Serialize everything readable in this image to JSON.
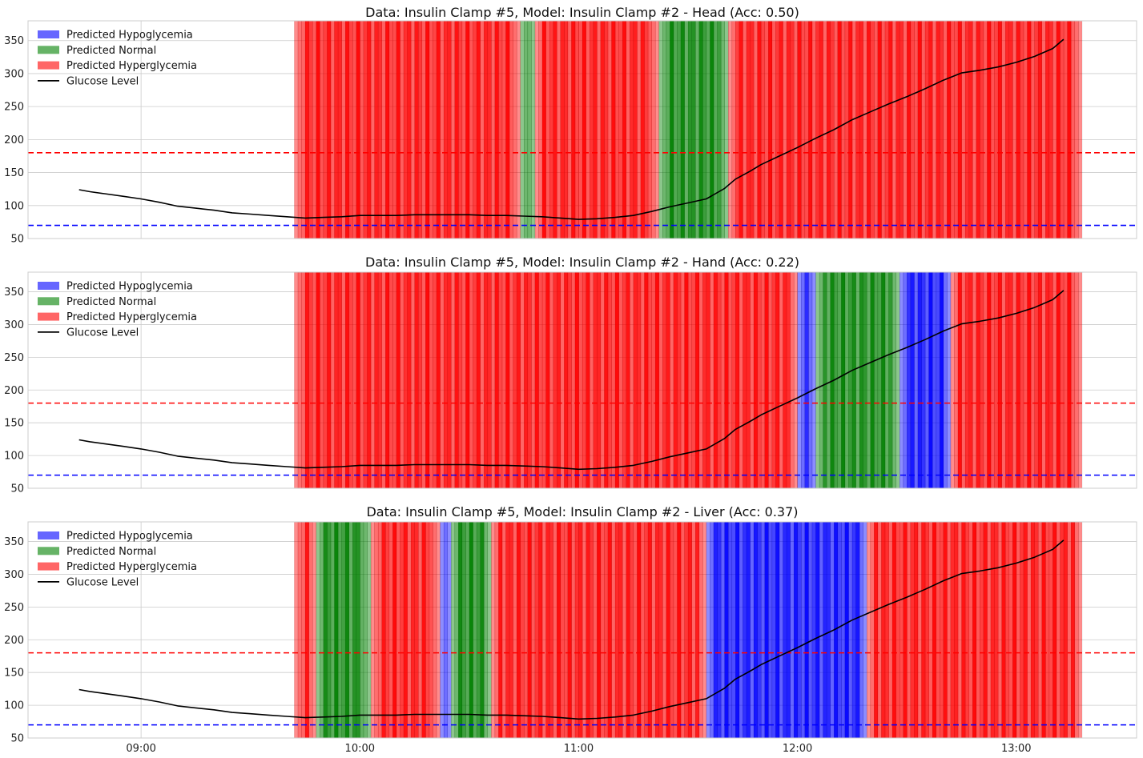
{
  "figure": {
    "colors": {
      "hypo": "#0000ff",
      "normal": "#008000",
      "hyper": "#ff0000",
      "glucose": "#000000",
      "grid": "#cccccc",
      "hyper_threshold": "#ff0000",
      "hypo_threshold": "#0000ff"
    }
  },
  "chart_data": [
    {
      "type": "line",
      "title": "Data: Insulin Clamp #5, Model: Insulin Clamp #2 - Head (Acc: 0.50)",
      "xlabel": "",
      "ylabel": "",
      "xlim": [
        "08:29",
        "13:33"
      ],
      "ylim": [
        50,
        380
      ],
      "yticks": [
        50,
        100,
        150,
        200,
        250,
        300,
        350
      ],
      "xticks": [
        "09:00",
        "10:00",
        "11:00",
        "12:00",
        "13:00"
      ],
      "show_xtick_labels": false,
      "grid": true,
      "legend": {
        "placement": "top-left",
        "entries": [
          {
            "label": "Predicted Hypoglycemia",
            "kind": "patch",
            "class": "hypo"
          },
          {
            "label": "Predicted Normal",
            "kind": "patch",
            "class": "normal"
          },
          {
            "label": "Predicted Hyperglycemia",
            "kind": "patch",
            "class": "hyper"
          },
          {
            "label": "Glucose Level",
            "kind": "line",
            "class": "glucose"
          }
        ]
      },
      "threshold_lines": [
        {
          "y": 180,
          "class": "hyper_threshold",
          "style": "dashed"
        },
        {
          "y": 70,
          "class": "hypo_threshold",
          "style": "dashed"
        }
      ],
      "prediction_spans": [
        {
          "start": "09:42",
          "end": "10:44",
          "class": "hyper"
        },
        {
          "start": "10:44",
          "end": "10:48",
          "class": "normal"
        },
        {
          "start": "10:48",
          "end": "11:22",
          "class": "hyper"
        },
        {
          "start": "11:22",
          "end": "11:41",
          "class": "normal"
        },
        {
          "start": "11:41",
          "end": "13:18",
          "class": "hyper"
        }
      ],
      "series": [
        {
          "name": "Glucose Level",
          "x": [
            "08:43",
            "08:46",
            "08:50",
            "08:55",
            "09:00",
            "09:05",
            "09:10",
            "09:15",
            "09:20",
            "09:25",
            "09:30",
            "09:35",
            "09:40",
            "09:45",
            "09:50",
            "09:55",
            "10:00",
            "10:05",
            "10:10",
            "10:15",
            "10:20",
            "10:25",
            "10:30",
            "10:35",
            "10:40",
            "10:45",
            "10:50",
            "10:55",
            "11:00",
            "11:05",
            "11:10",
            "11:15",
            "11:20",
            "11:25",
            "11:30",
            "11:35",
            "11:40",
            "11:43",
            "11:47",
            "11:50",
            "11:55",
            "12:00",
            "12:05",
            "12:10",
            "12:15",
            "12:20",
            "12:25",
            "12:30",
            "12:35",
            "12:40",
            "12:45",
            "12:50",
            "12:55",
            "13:00",
            "13:05",
            "13:10",
            "13:13"
          ],
          "y": [
            124,
            121,
            118,
            114,
            110,
            105,
            99,
            96,
            93,
            89,
            87,
            85,
            83,
            81,
            82,
            83,
            85,
            85,
            85,
            86,
            86,
            86,
            86,
            85,
            85,
            84,
            83,
            81,
            79,
            80,
            82,
            85,
            91,
            98,
            104,
            110,
            126,
            140,
            152,
            162,
            175,
            188,
            202,
            215,
            230,
            242,
            254,
            265,
            277,
            290,
            301,
            305,
            310,
            317,
            326,
            338,
            352
          ]
        }
      ]
    },
    {
      "type": "line",
      "title": "Data: Insulin Clamp #5, Model: Insulin Clamp #2 - Hand (Acc: 0.22)",
      "xlabel": "",
      "ylabel": "",
      "xlim": [
        "08:29",
        "13:33"
      ],
      "ylim": [
        50,
        380
      ],
      "yticks": [
        50,
        100,
        150,
        200,
        250,
        300,
        350
      ],
      "xticks": [
        "09:00",
        "10:00",
        "11:00",
        "12:00",
        "13:00"
      ],
      "show_xtick_labels": false,
      "grid": true,
      "legend": {
        "placement": "top-left",
        "entries": [
          {
            "label": "Predicted Hypoglycemia",
            "kind": "patch",
            "class": "hypo"
          },
          {
            "label": "Predicted Normal",
            "kind": "patch",
            "class": "normal"
          },
          {
            "label": "Predicted Hyperglycemia",
            "kind": "patch",
            "class": "hyper"
          },
          {
            "label": "Glucose Level",
            "kind": "line",
            "class": "glucose"
          }
        ]
      },
      "threshold_lines": [
        {
          "y": 180,
          "class": "hyper_threshold",
          "style": "dashed"
        },
        {
          "y": 70,
          "class": "hypo_threshold",
          "style": "dashed"
        }
      ],
      "prediction_spans": [
        {
          "start": "09:42",
          "end": "12:00",
          "class": "hyper"
        },
        {
          "start": "12:00",
          "end": "12:05",
          "class": "hypo"
        },
        {
          "start": "12:05",
          "end": "12:28",
          "class": "normal"
        },
        {
          "start": "12:28",
          "end": "12:42",
          "class": "hypo"
        },
        {
          "start": "12:42",
          "end": "13:18",
          "class": "hyper"
        }
      ],
      "series": [
        {
          "name": "Glucose Level",
          "x": [
            "08:43",
            "08:46",
            "08:50",
            "08:55",
            "09:00",
            "09:05",
            "09:10",
            "09:15",
            "09:20",
            "09:25",
            "09:30",
            "09:35",
            "09:40",
            "09:45",
            "09:50",
            "09:55",
            "10:00",
            "10:05",
            "10:10",
            "10:15",
            "10:20",
            "10:25",
            "10:30",
            "10:35",
            "10:40",
            "10:45",
            "10:50",
            "10:55",
            "11:00",
            "11:05",
            "11:10",
            "11:15",
            "11:20",
            "11:25",
            "11:30",
            "11:35",
            "11:40",
            "11:43",
            "11:47",
            "11:50",
            "11:55",
            "12:00",
            "12:05",
            "12:10",
            "12:15",
            "12:20",
            "12:25",
            "12:30",
            "12:35",
            "12:40",
            "12:45",
            "12:50",
            "12:55",
            "13:00",
            "13:05",
            "13:10",
            "13:13"
          ],
          "y": [
            124,
            121,
            118,
            114,
            110,
            105,
            99,
            96,
            93,
            89,
            87,
            85,
            83,
            81,
            82,
            83,
            85,
            85,
            85,
            86,
            86,
            86,
            86,
            85,
            85,
            84,
            83,
            81,
            79,
            80,
            82,
            85,
            91,
            98,
            104,
            110,
            126,
            140,
            152,
            162,
            175,
            188,
            202,
            215,
            230,
            242,
            254,
            265,
            277,
            290,
            301,
            305,
            310,
            317,
            326,
            338,
            352
          ]
        }
      ]
    },
    {
      "type": "line",
      "title": "Data: Insulin Clamp #5, Model: Insulin Clamp #2 - Liver (Acc: 0.37)",
      "xlabel": "",
      "ylabel": "",
      "xlim": [
        "08:29",
        "13:33"
      ],
      "ylim": [
        50,
        380
      ],
      "yticks": [
        50,
        100,
        150,
        200,
        250,
        300,
        350
      ],
      "xticks": [
        "09:00",
        "10:00",
        "11:00",
        "12:00",
        "13:00"
      ],
      "show_xtick_labels": true,
      "grid": true,
      "legend": {
        "placement": "top-left",
        "entries": [
          {
            "label": "Predicted Hypoglycemia",
            "kind": "patch",
            "class": "hypo"
          },
          {
            "label": "Predicted Normal",
            "kind": "patch",
            "class": "normal"
          },
          {
            "label": "Predicted Hyperglycemia",
            "kind": "patch",
            "class": "hyper"
          },
          {
            "label": "Glucose Level",
            "kind": "line",
            "class": "glucose"
          }
        ]
      },
      "threshold_lines": [
        {
          "y": 180,
          "class": "hyper_threshold",
          "style": "dashed"
        },
        {
          "y": 70,
          "class": "hypo_threshold",
          "style": "dashed"
        }
      ],
      "prediction_spans": [
        {
          "start": "09:42",
          "end": "09:48",
          "class": "hyper"
        },
        {
          "start": "09:48",
          "end": "10:03",
          "class": "normal"
        },
        {
          "start": "10:03",
          "end": "10:22",
          "class": "hyper"
        },
        {
          "start": "10:22",
          "end": "10:25",
          "class": "hypo"
        },
        {
          "start": "10:25",
          "end": "10:36",
          "class": "normal"
        },
        {
          "start": "10:36",
          "end": "11:35",
          "class": "hyper"
        },
        {
          "start": "11:35",
          "end": "12:19",
          "class": "hypo"
        },
        {
          "start": "12:19",
          "end": "13:18",
          "class": "hyper"
        }
      ],
      "series": [
        {
          "name": "Glucose Level",
          "x": [
            "08:43",
            "08:46",
            "08:50",
            "08:55",
            "09:00",
            "09:05",
            "09:10",
            "09:15",
            "09:20",
            "09:25",
            "09:30",
            "09:35",
            "09:40",
            "09:45",
            "09:50",
            "09:55",
            "10:00",
            "10:05",
            "10:10",
            "10:15",
            "10:20",
            "10:25",
            "10:30",
            "10:35",
            "10:40",
            "10:45",
            "10:50",
            "10:55",
            "11:00",
            "11:05",
            "11:10",
            "11:15",
            "11:20",
            "11:25",
            "11:30",
            "11:35",
            "11:40",
            "11:43",
            "11:47",
            "11:50",
            "11:55",
            "12:00",
            "12:05",
            "12:10",
            "12:15",
            "12:20",
            "12:25",
            "12:30",
            "12:35",
            "12:40",
            "12:45",
            "12:50",
            "12:55",
            "13:00",
            "13:05",
            "13:10",
            "13:13"
          ],
          "y": [
            124,
            121,
            118,
            114,
            110,
            105,
            99,
            96,
            93,
            89,
            87,
            85,
            83,
            81,
            82,
            83,
            85,
            85,
            85,
            86,
            86,
            86,
            86,
            85,
            85,
            84,
            83,
            81,
            79,
            80,
            82,
            85,
            91,
            98,
            104,
            110,
            126,
            140,
            152,
            162,
            175,
            188,
            202,
            215,
            230,
            242,
            254,
            265,
            277,
            290,
            301,
            305,
            310,
            317,
            326,
            338,
            352
          ]
        }
      ]
    }
  ]
}
